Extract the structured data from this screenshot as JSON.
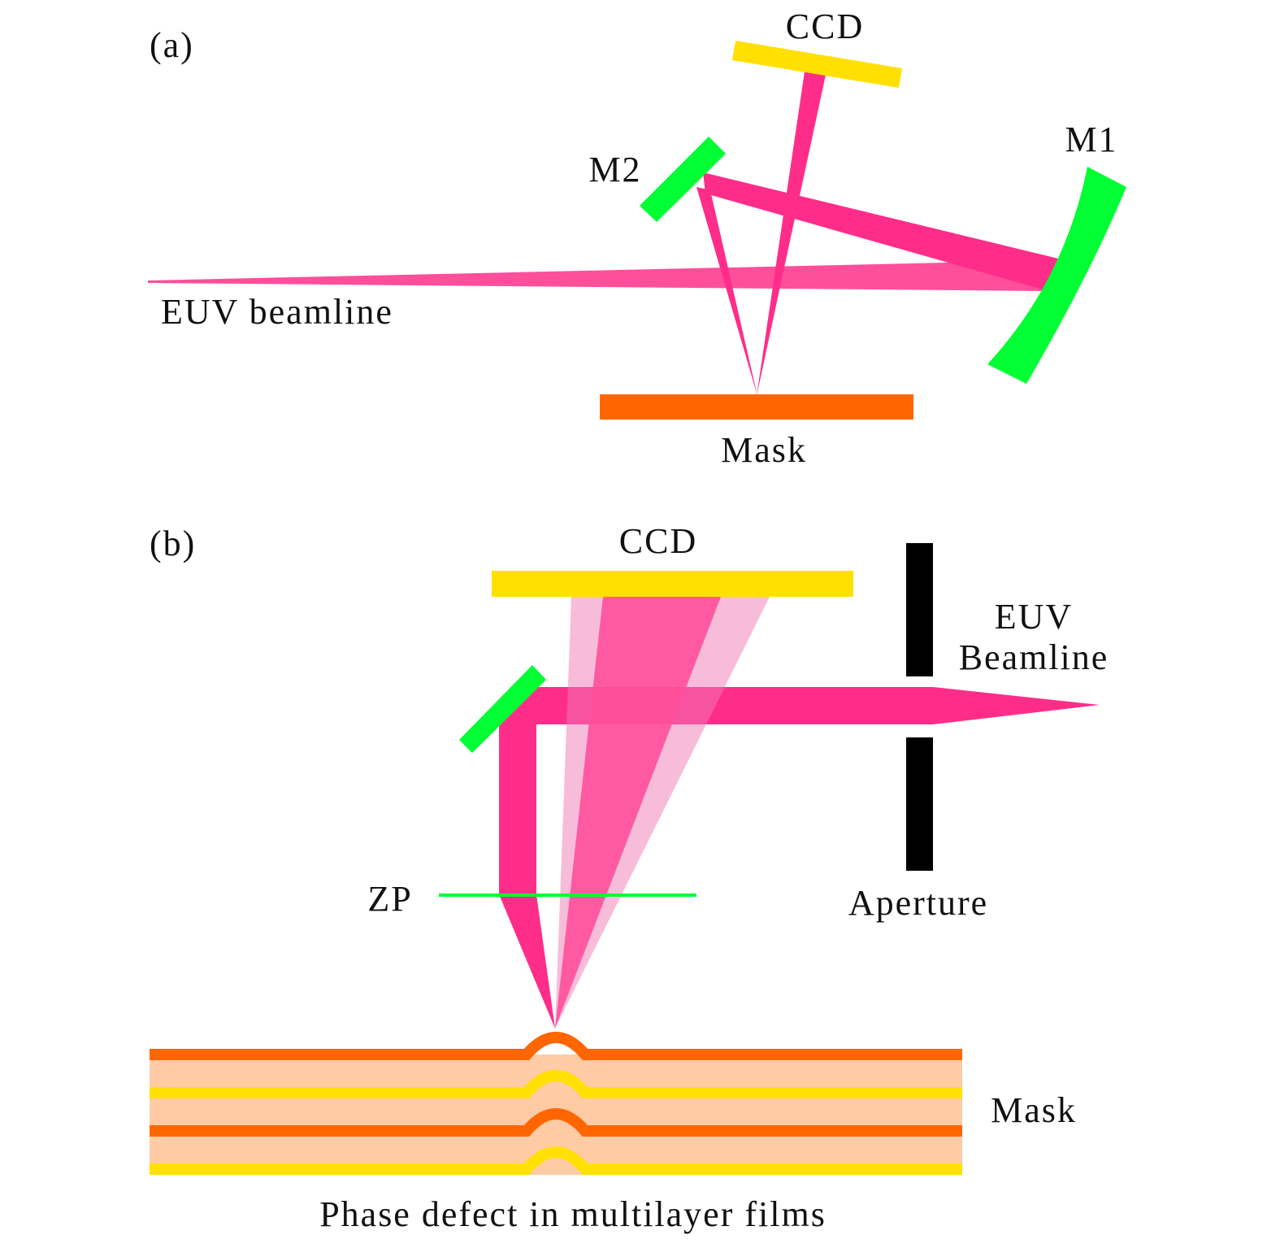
{
  "colors": {
    "beam": "#FF2D8A",
    "beam_light": "#FF4F9A",
    "mirror": "#00FF33",
    "ccd": "#FFE000",
    "mask": "#FF6600",
    "mask_fill": "#FFCBA4",
    "aperture": "#000000"
  },
  "panel_a": {
    "tag": "(a)",
    "ccd": "CCD",
    "m1": "M1",
    "m2": "M2",
    "beamline": "EUV beamline",
    "mask": "Mask"
  },
  "panel_b": {
    "tag": "(b)",
    "ccd": "CCD",
    "beamline_line1": "EUV",
    "beamline_line2": "Beamline",
    "zp": "ZP",
    "aperture": "Aperture",
    "mask": "Mask",
    "caption": "Phase defect in multilayer films"
  }
}
